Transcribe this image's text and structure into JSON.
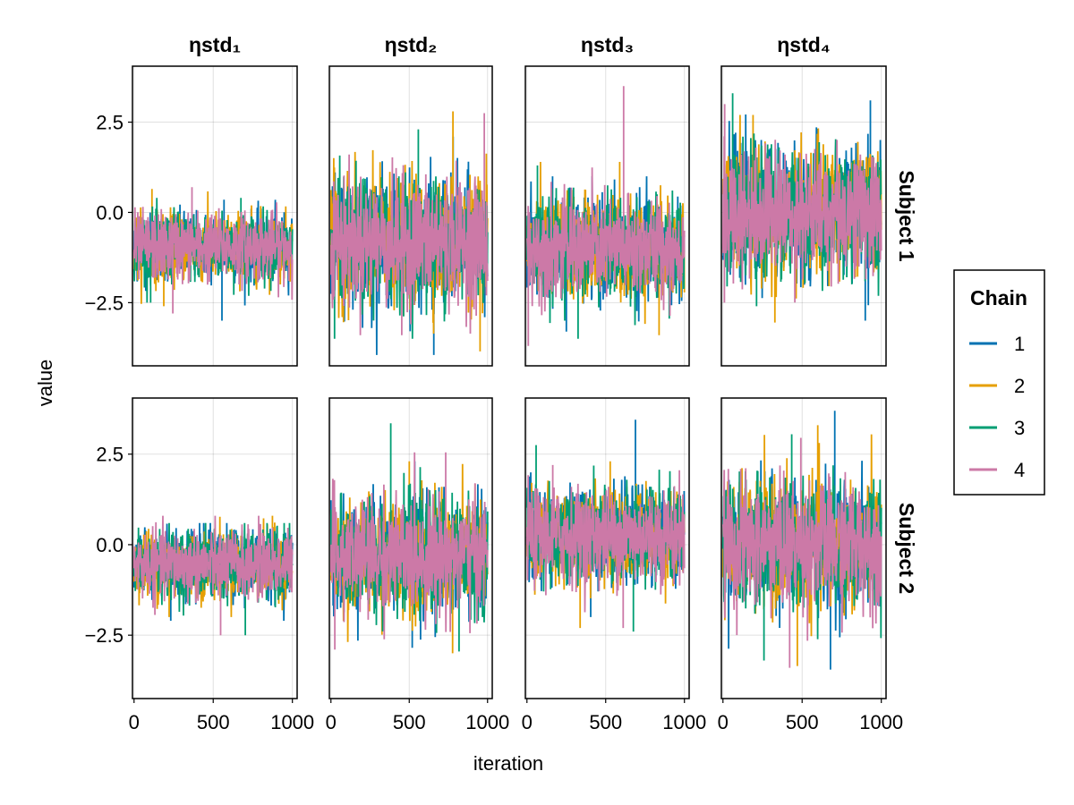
{
  "chart_data": {
    "type": "line",
    "layout": "facet-grid",
    "xlabel": "iteration",
    "ylabel": "value",
    "columns": [
      "ηstd₁",
      "ηstd₂",
      "ηstd₃",
      "ηstd₄"
    ],
    "rows": [
      "Subject 1",
      "Subject 2"
    ],
    "xlim": [
      -10,
      1030
    ],
    "ylim": [
      -4.25,
      4.05
    ],
    "xticks": [
      0,
      500,
      1000
    ],
    "xtick_labels": [
      "0",
      "500",
      "1000"
    ],
    "yticks": [
      2.5,
      0.0,
      -2.5
    ],
    "ytick_labels": [
      "2.5",
      "0.0",
      "−2.5"
    ],
    "n_iterations": 1000,
    "grid": true,
    "legend": {
      "title": "Chain",
      "position": "right",
      "entries": [
        {
          "name": "1",
          "color": "#0072B2"
        },
        {
          "name": "2",
          "color": "#E69F00"
        },
        {
          "name": "3",
          "color": "#009E73"
        },
        {
          "name": "4",
          "color": "#CC79A7"
        }
      ]
    },
    "panels": [
      {
        "row": "Subject 1",
        "column": "ηstd₁",
        "chains": [
          {
            "chain": "1",
            "mean": -0.95,
            "sd": 0.55,
            "min": -3.0,
            "max": 0.35
          },
          {
            "chain": "2",
            "mean": -0.95,
            "sd": 0.55,
            "min": -2.6,
            "max": 0.65
          },
          {
            "chain": "3",
            "mean": -0.95,
            "sd": 0.55,
            "min": -2.5,
            "max": 0.4
          },
          {
            "chain": "4",
            "mean": -0.95,
            "sd": 0.55,
            "min": -2.8,
            "max": 0.7
          }
        ]
      },
      {
        "row": "Subject 1",
        "column": "ηstd₂",
        "chains": [
          {
            "chain": "1",
            "mean": -0.8,
            "sd": 1.0,
            "min": -3.95,
            "max": 2.1
          },
          {
            "chain": "2",
            "mean": -0.8,
            "sd": 1.0,
            "min": -3.85,
            "max": 2.8
          },
          {
            "chain": "3",
            "mean": -0.8,
            "sd": 1.0,
            "min": -3.5,
            "max": 2.3
          },
          {
            "chain": "4",
            "mean": -0.8,
            "sd": 1.0,
            "min": -3.4,
            "max": 2.75
          }
        ]
      },
      {
        "row": "Subject 1",
        "column": "ηstd₃",
        "chains": [
          {
            "chain": "1",
            "mean": -1.0,
            "sd": 0.8,
            "min": -3.3,
            "max": 1.0
          },
          {
            "chain": "2",
            "mean": -1.0,
            "sd": 0.8,
            "min": -3.4,
            "max": 1.4
          },
          {
            "chain": "3",
            "mean": -1.0,
            "sd": 0.8,
            "min": -3.5,
            "max": 1.3
          },
          {
            "chain": "4",
            "mean": -1.0,
            "sd": 0.8,
            "min": -3.7,
            "max": 3.5
          }
        ]
      },
      {
        "row": "Subject 1",
        "column": "ηstd₄",
        "chains": [
          {
            "chain": "1",
            "mean": 0.0,
            "sd": 1.0,
            "min": -3.0,
            "max": 3.1
          },
          {
            "chain": "2",
            "mean": 0.0,
            "sd": 1.0,
            "min": -3.05,
            "max": 2.7
          },
          {
            "chain": "3",
            "mean": 0.0,
            "sd": 1.0,
            "min": -2.6,
            "max": 3.3
          },
          {
            "chain": "4",
            "mean": 0.0,
            "sd": 1.0,
            "min": -2.5,
            "max": 3.0
          }
        ]
      },
      {
        "row": "Subject 2",
        "column": "ηstd₁",
        "chains": [
          {
            "chain": "1",
            "mean": -0.55,
            "sd": 0.55,
            "min": -2.1,
            "max": 0.6
          },
          {
            "chain": "2",
            "mean": -0.55,
            "sd": 0.55,
            "min": -2.0,
            "max": 0.8
          },
          {
            "chain": "3",
            "mean": -0.55,
            "sd": 0.55,
            "min": -2.5,
            "max": 0.6
          },
          {
            "chain": "4",
            "mean": -0.55,
            "sd": 0.55,
            "min": -2.5,
            "max": 0.8
          }
        ]
      },
      {
        "row": "Subject 2",
        "column": "ηstd₂",
        "chains": [
          {
            "chain": "1",
            "mean": -0.3,
            "sd": 0.9,
            "min": -2.85,
            "max": 2.3
          },
          {
            "chain": "2",
            "mean": -0.3,
            "sd": 0.9,
            "min": -3.0,
            "max": 2.3
          },
          {
            "chain": "3",
            "mean": -0.3,
            "sd": 0.9,
            "min": -2.95,
            "max": 3.35
          },
          {
            "chain": "4",
            "mean": -0.3,
            "sd": 0.9,
            "min": -2.9,
            "max": 2.55
          }
        ]
      },
      {
        "row": "Subject 2",
        "column": "ηstd₃",
        "chains": [
          {
            "chain": "1",
            "mean": 0.25,
            "sd": 0.75,
            "min": -2.0,
            "max": 3.45
          },
          {
            "chain": "2",
            "mean": 0.25,
            "sd": 0.75,
            "min": -2.3,
            "max": 2.3
          },
          {
            "chain": "3",
            "mean": 0.25,
            "sd": 0.75,
            "min": -2.4,
            "max": 2.75
          },
          {
            "chain": "4",
            "mean": 0.25,
            "sd": 0.75,
            "min": -2.3,
            "max": 2.2
          }
        ]
      },
      {
        "row": "Subject 2",
        "column": "ηstd₄",
        "chains": [
          {
            "chain": "1",
            "mean": 0.0,
            "sd": 1.0,
            "min": -3.45,
            "max": 3.7
          },
          {
            "chain": "2",
            "mean": 0.0,
            "sd": 1.0,
            "min": -3.35,
            "max": 3.3
          },
          {
            "chain": "3",
            "mean": 0.0,
            "sd": 1.0,
            "min": -3.2,
            "max": 3.05
          },
          {
            "chain": "4",
            "mean": 0.0,
            "sd": 1.0,
            "min": -3.4,
            "max": 2.95
          }
        ]
      }
    ]
  }
}
